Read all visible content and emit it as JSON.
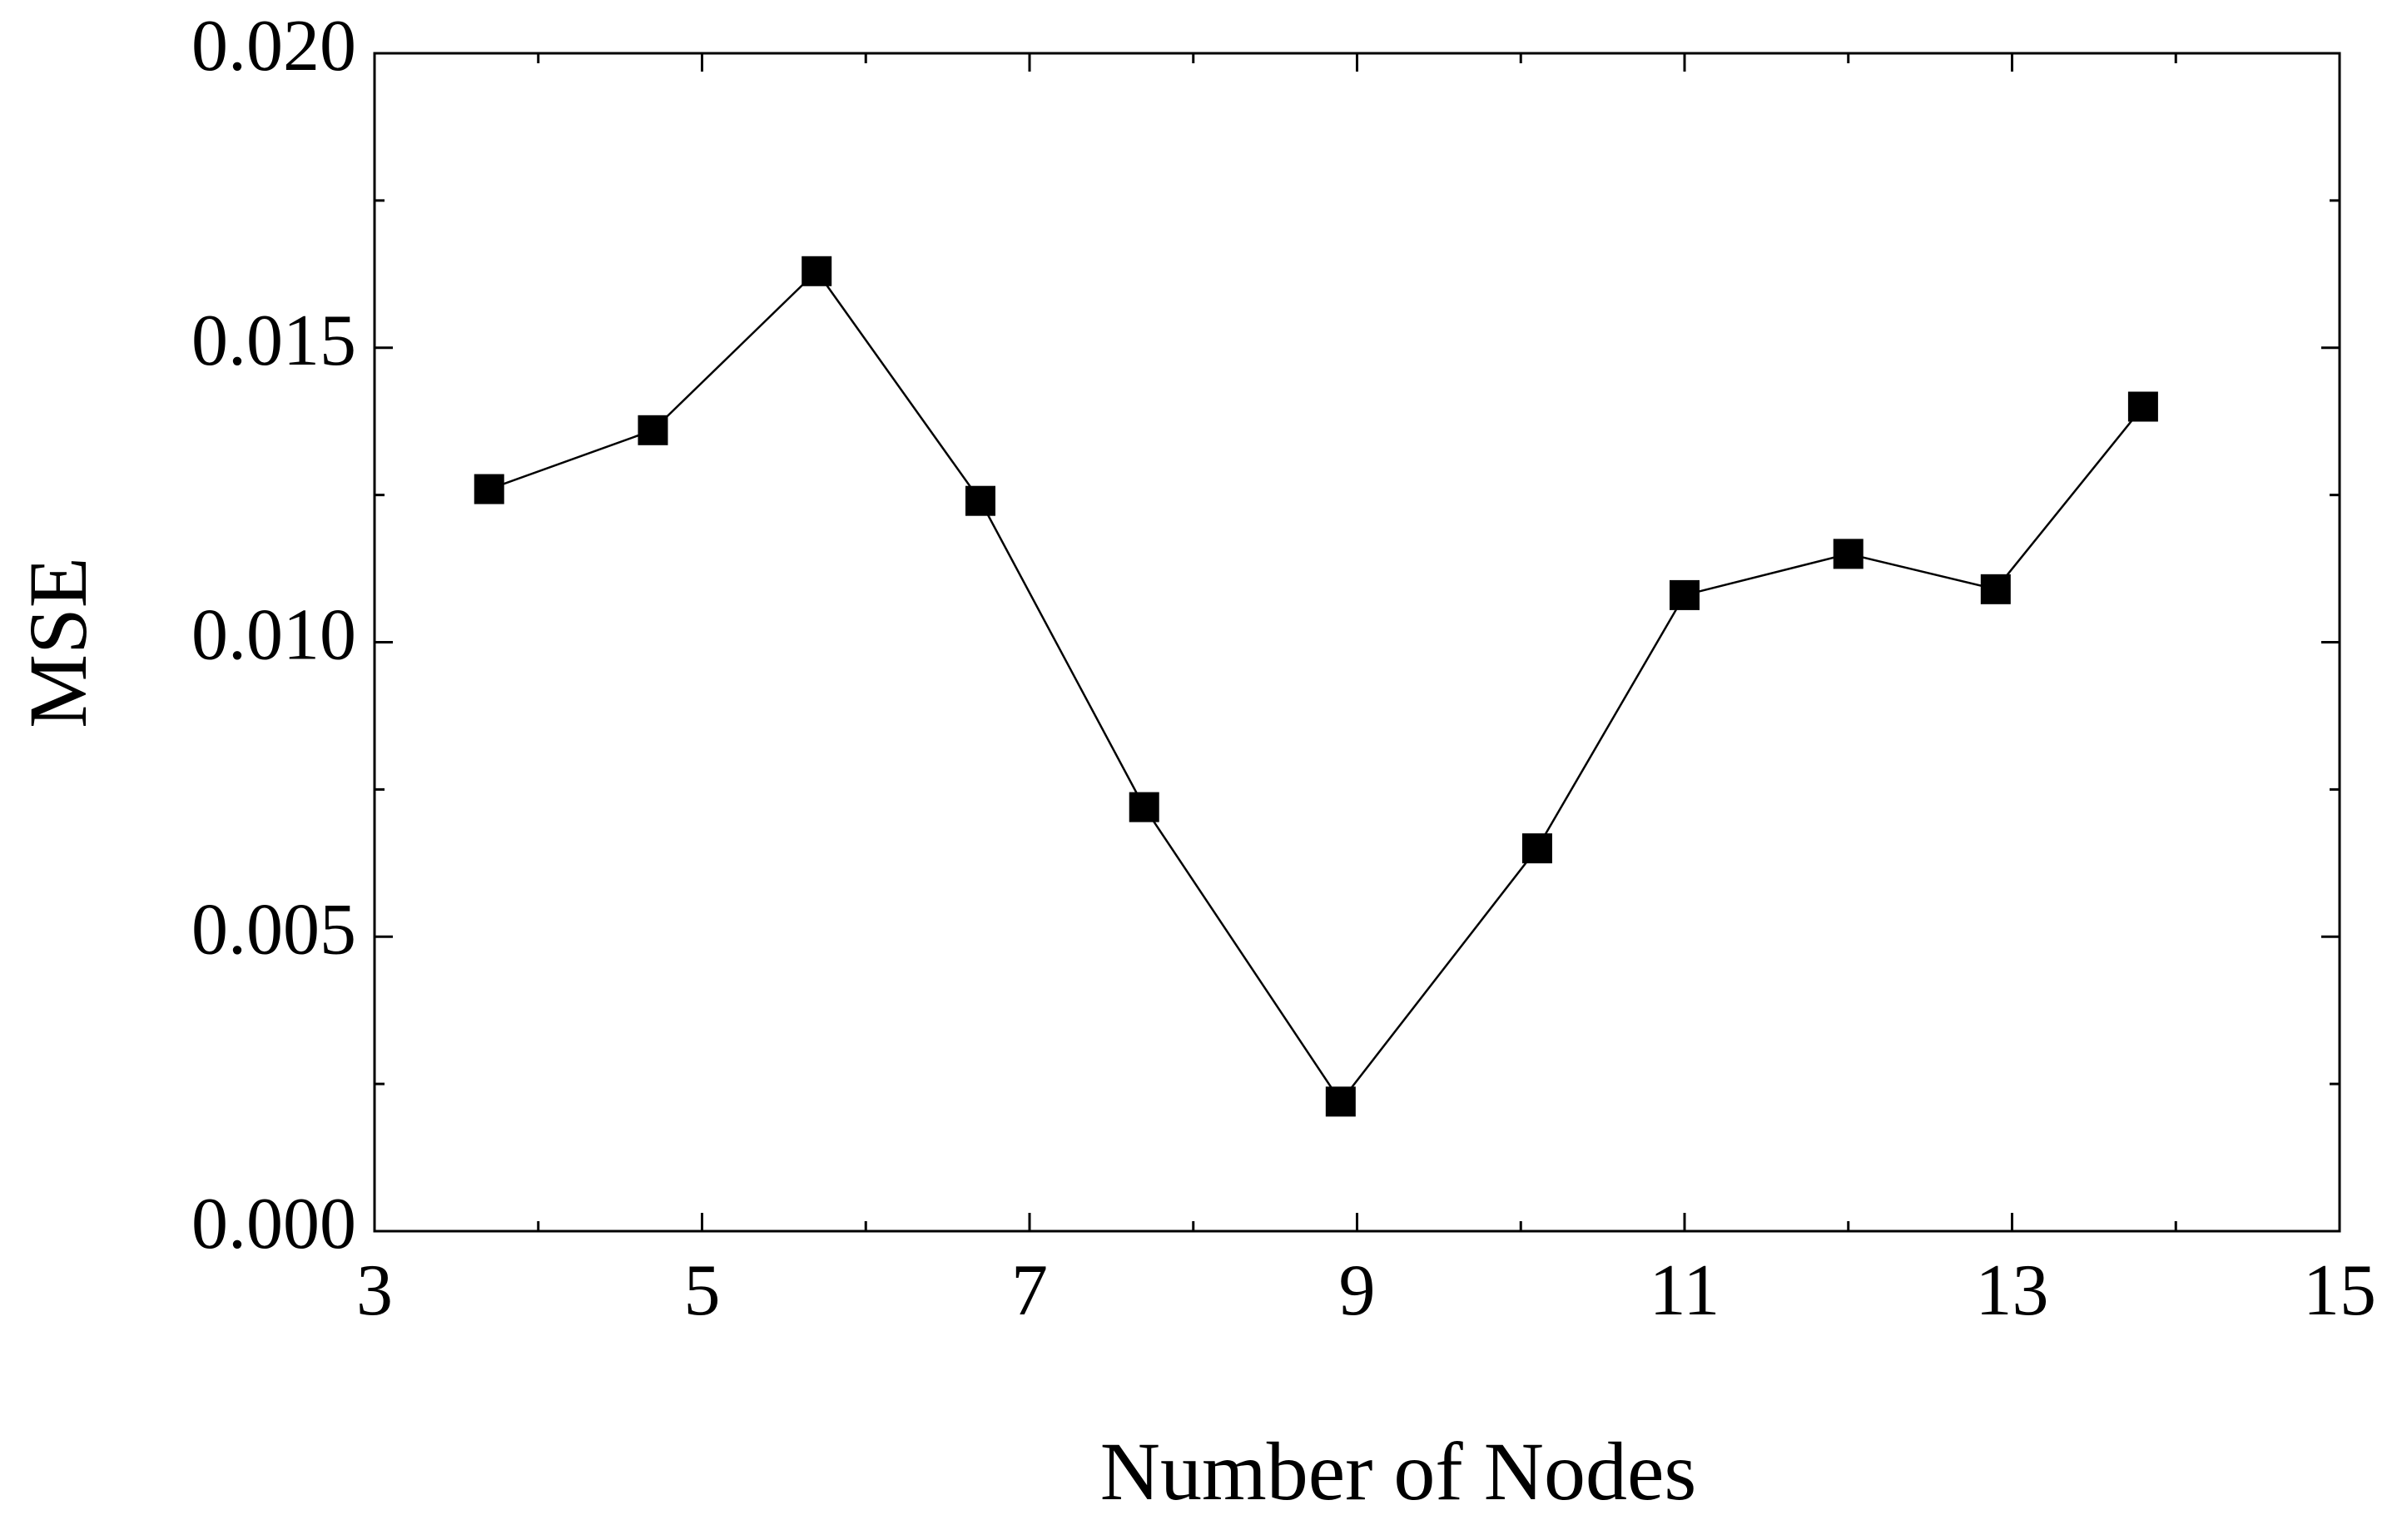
{
  "chart_data": {
    "type": "line",
    "x_label": "Number of Nodes",
    "y_label": "MSE",
    "x": [
      3.7,
      4.7,
      5.7,
      6.7,
      7.7,
      8.9,
      10.1,
      11.0,
      12.0,
      12.9,
      13.8
    ],
    "series": [
      {
        "color": "#000000",
        "marker": "square",
        "values": [
          0.0126,
          0.0136,
          0.0163,
          0.0124,
          0.0072,
          0.0022,
          0.0065,
          0.0108,
          0.0115,
          0.0109,
          0.014
        ]
      }
    ],
    "xlim": [
      3,
      15
    ],
    "xticks": [
      3,
      5,
      7,
      9,
      11,
      13,
      15
    ],
    "xminorticks": [
      4,
      6,
      8,
      10,
      12,
      14
    ],
    "ylim": [
      0,
      0.02
    ],
    "yticks": [
      {
        "value": 0,
        "label": "0.000"
      },
      {
        "value": 0.005,
        "label": "0.005"
      },
      {
        "value": 0.01,
        "label": "0.010"
      },
      {
        "value": 0.015,
        "label": "0.015"
      },
      {
        "value": 0.02,
        "label": "0.020"
      }
    ],
    "yminorticks": [
      0.0025,
      0.0075,
      0.0125,
      0.0175
    ],
    "grid": false
  }
}
